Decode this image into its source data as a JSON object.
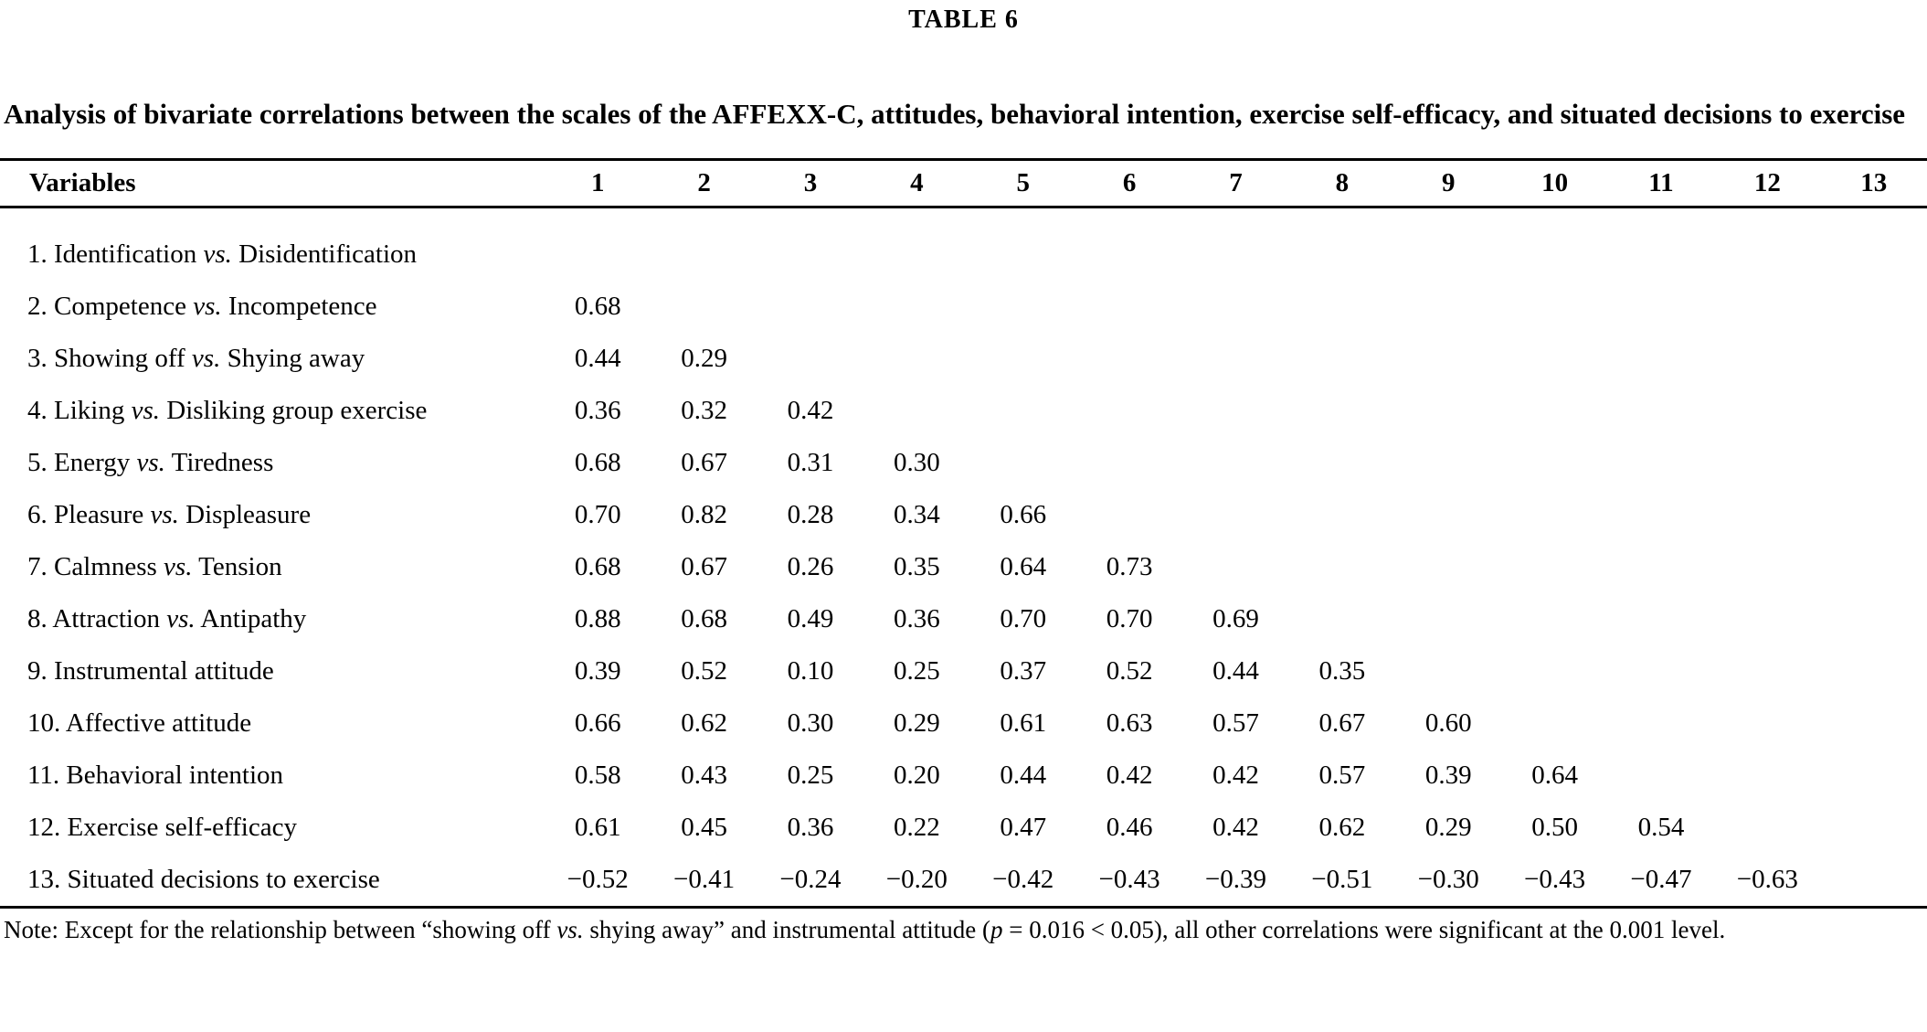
{
  "page": {
    "table_label": "TABLE 6",
    "table_title": "Analysis of bivariate correlations between the scales of the AFFEXX-C, attitudes, behavioral intention, exercise self-efficacy, and situated decisions to exercise"
  },
  "table": {
    "header": {
      "variables": "Variables",
      "columns": [
        "1",
        "2",
        "3",
        "4",
        "5",
        "6",
        "7",
        "8",
        "9",
        "10",
        "11",
        "12",
        "13"
      ]
    },
    "rows": [
      {
        "label": {
          "pre": "1. Identification ",
          "italic": "vs.",
          "post": " Disidentification"
        },
        "values": []
      },
      {
        "label": {
          "pre": "2. Competence ",
          "italic": "vs.",
          "post": " Incompetence"
        },
        "values": [
          "0.68"
        ]
      },
      {
        "label": {
          "pre": "3. Showing off ",
          "italic": "vs.",
          "post": " Shying away"
        },
        "values": [
          "0.44",
          "0.29"
        ]
      },
      {
        "label": {
          "pre": "4. Liking ",
          "italic": "vs.",
          "post": " Disliking group exercise"
        },
        "values": [
          "0.36",
          "0.32",
          "0.42"
        ]
      },
      {
        "label": {
          "pre": "5. Energy ",
          "italic": "vs.",
          "post": " Tiredness"
        },
        "values": [
          "0.68",
          "0.67",
          "0.31",
          "0.30"
        ]
      },
      {
        "label": {
          "pre": "6. Pleasure ",
          "italic": "vs.",
          "post": " Displeasure"
        },
        "values": [
          "0.70",
          "0.82",
          "0.28",
          "0.34",
          "0.66"
        ]
      },
      {
        "label": {
          "pre": "7. Calmness ",
          "italic": "vs.",
          "post": " Tension"
        },
        "values": [
          "0.68",
          "0.67",
          "0.26",
          "0.35",
          "0.64",
          "0.73"
        ]
      },
      {
        "label": {
          "pre": "8. Attraction ",
          "italic": "vs.",
          "post": " Antipathy"
        },
        "values": [
          "0.88",
          "0.68",
          "0.49",
          "0.36",
          "0.70",
          "0.70",
          "0.69"
        ]
      },
      {
        "label": {
          "pre": "9. Instrumental attitude",
          "italic": "",
          "post": ""
        },
        "values": [
          "0.39",
          "0.52",
          "0.10",
          "0.25",
          "0.37",
          "0.52",
          "0.44",
          "0.35"
        ]
      },
      {
        "label": {
          "pre": "10. Affective attitude",
          "italic": "",
          "post": ""
        },
        "values": [
          "0.66",
          "0.62",
          "0.30",
          "0.29",
          "0.61",
          "0.63",
          "0.57",
          "0.67",
          "0.60"
        ]
      },
      {
        "label": {
          "pre": "11. Behavioral intention",
          "italic": "",
          "post": ""
        },
        "values": [
          "0.58",
          "0.43",
          "0.25",
          "0.20",
          "0.44",
          "0.42",
          "0.42",
          "0.57",
          "0.39",
          "0.64"
        ]
      },
      {
        "label": {
          "pre": "12. Exercise self-efficacy",
          "italic": "",
          "post": ""
        },
        "values": [
          "0.61",
          "0.45",
          "0.36",
          "0.22",
          "0.47",
          "0.46",
          "0.42",
          "0.62",
          "0.29",
          "0.50",
          "0.54"
        ]
      },
      {
        "label": {
          "pre": "13. Situated decisions to exercise",
          "italic": "",
          "post": ""
        },
        "values": [
          "−0.52",
          "−0.41",
          "−0.24",
          "−0.20",
          "−0.42",
          "−0.43",
          "−0.39",
          "−0.51",
          "−0.30",
          "−0.43",
          "−0.47",
          "−0.63"
        ]
      }
    ]
  },
  "note": {
    "parts": [
      {
        "text": "Note: Except for the relationship between “showing off ",
        "italic": false
      },
      {
        "text": "vs.",
        "italic": true
      },
      {
        "text": " shying away” and instrumental attitude (",
        "italic": false
      },
      {
        "text": "p",
        "italic": true
      },
      {
        "text": " = 0.016 < 0.05), all other correlations were significant at the 0.001 level.",
        "italic": false
      }
    ]
  }
}
